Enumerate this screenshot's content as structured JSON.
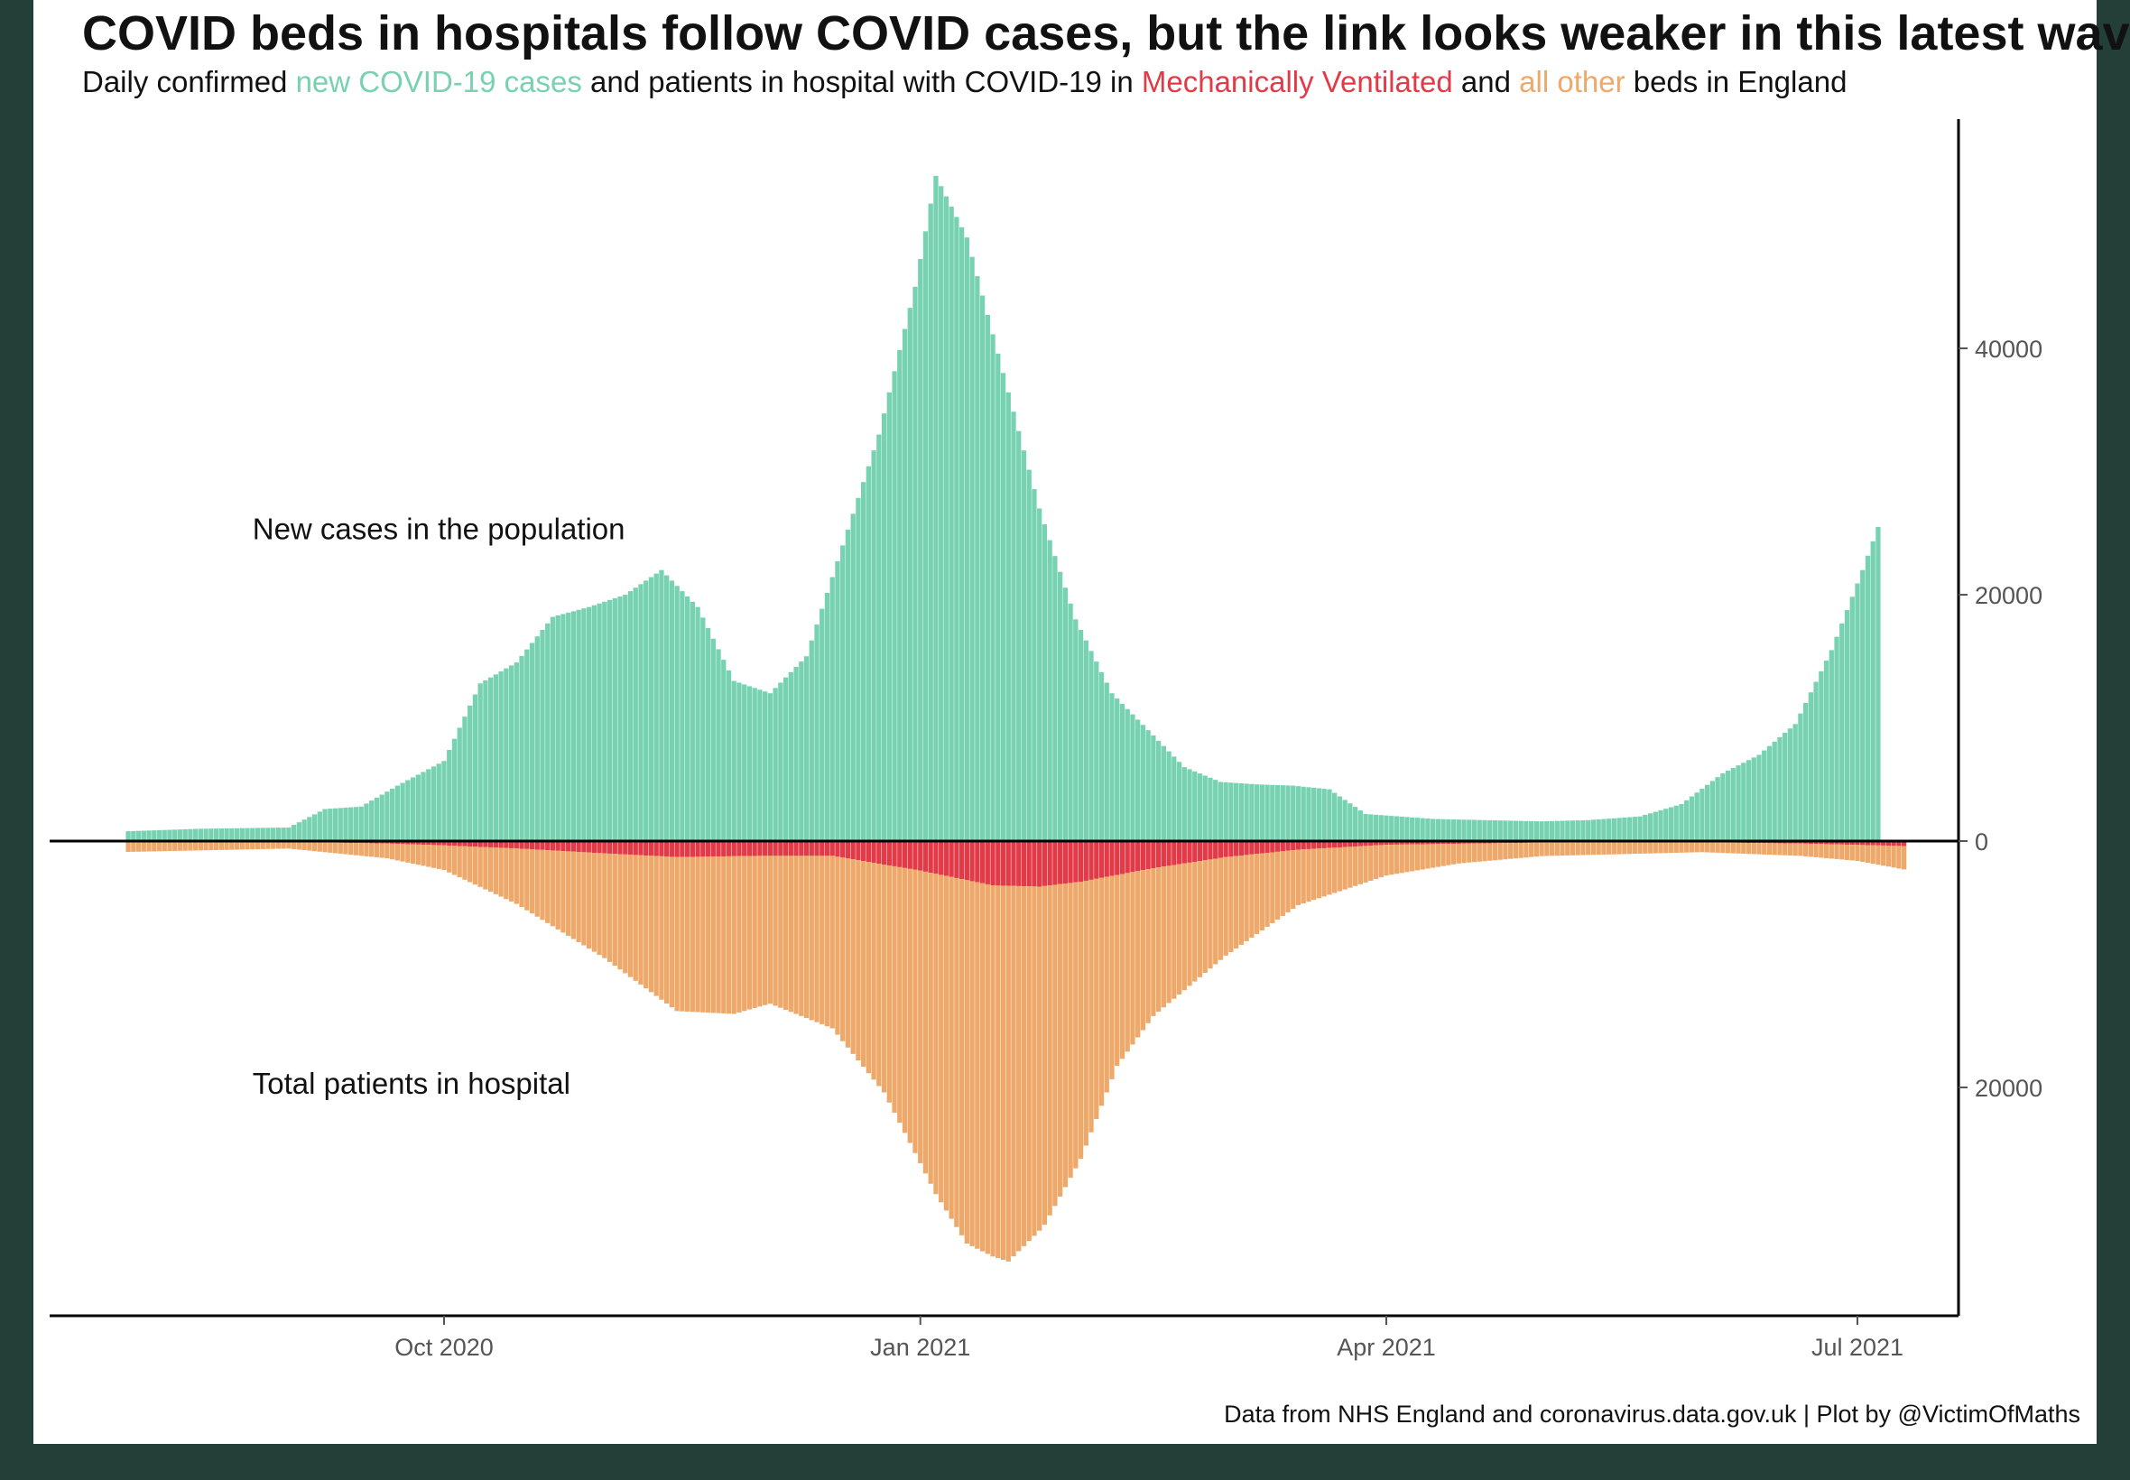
{
  "title": "COVID beds in hospitals follow COVID cases, but the link looks weaker in this latest wave",
  "subtitle": {
    "part1": "Daily confirmed ",
    "cases": "new COVID-19 cases",
    "part2": " and patients in hospital with COVID-19 in ",
    "ventilated": "Mechanically Ventilated",
    "part3": " and ",
    "other": "all other",
    "part4": " beds in England"
  },
  "caption": "Data from NHS England and coronavirus.data.gov.uk | Plot by @VictimOfMaths",
  "colors": {
    "cases": "#76d2b0",
    "ventilated": "#e33a48",
    "other_beds": "#eea86a",
    "background": "#243f37"
  },
  "chart_data": {
    "type": "bar",
    "description_orientation": "cases above zero line, hospital beds mirrored below",
    "x_start": "2020-08-01",
    "x_end": "2021-07-10",
    "x_ticks": [
      {
        "date": "2020-10-01",
        "label": "Oct 2020"
      },
      {
        "date": "2021-01-01",
        "label": "Jan 2021"
      },
      {
        "date": "2021-04-01",
        "label": "Apr 2021"
      },
      {
        "date": "2021-07-01",
        "label": "Jul 2021"
      }
    ],
    "y_ticks": [
      {
        "value": 40000,
        "label": "40000"
      },
      {
        "value": 20000,
        "label": "20000"
      },
      {
        "value": 0,
        "label": "0"
      },
      {
        "value": -20000,
        "label": "20000"
      }
    ],
    "ylim": [
      -38000,
      59000
    ],
    "annotations": [
      {
        "text": "New cases in the population",
        "date": "2020-08-25",
        "value": 24500
      },
      {
        "text": "Total patients in hospital",
        "date": "2020-08-25",
        "value": -20500
      }
    ],
    "series": [
      {
        "name": "new COVID-19 cases",
        "color": "#76d2b0",
        "points": [
          [
            "2020-08-01",
            800
          ],
          [
            "2020-08-15",
            1000
          ],
          [
            "2020-09-01",
            1100
          ],
          [
            "2020-09-08",
            2600
          ],
          [
            "2020-09-15",
            2800
          ],
          [
            "2020-09-22",
            4500
          ],
          [
            "2020-10-01",
            6500
          ],
          [
            "2020-10-08",
            12800
          ],
          [
            "2020-10-15",
            14500
          ],
          [
            "2020-10-22",
            18200
          ],
          [
            "2020-10-29",
            19000
          ],
          [
            "2020-11-05",
            20000
          ],
          [
            "2020-11-12",
            22000
          ],
          [
            "2020-11-19",
            19000
          ],
          [
            "2020-11-26",
            13000
          ],
          [
            "2020-12-03",
            12000
          ],
          [
            "2020-12-10",
            15000
          ],
          [
            "2020-12-17",
            24000
          ],
          [
            "2020-12-24",
            33000
          ],
          [
            "2020-12-31",
            45000
          ],
          [
            "2021-01-04",
            54000
          ],
          [
            "2021-01-10",
            49000
          ],
          [
            "2021-01-17",
            38000
          ],
          [
            "2021-01-24",
            27000
          ],
          [
            "2021-01-31",
            18000
          ],
          [
            "2021-02-07",
            12000
          ],
          [
            "2021-02-14",
            9000
          ],
          [
            "2021-02-21",
            6000
          ],
          [
            "2021-02-28",
            4800
          ],
          [
            "2021-03-07",
            4600
          ],
          [
            "2021-03-14",
            4500
          ],
          [
            "2021-03-21",
            4200
          ],
          [
            "2021-03-28",
            2200
          ],
          [
            "2021-04-10",
            1800
          ],
          [
            "2021-04-20",
            1700
          ],
          [
            "2021-05-01",
            1600
          ],
          [
            "2021-05-10",
            1700
          ],
          [
            "2021-05-20",
            2000
          ],
          [
            "2021-05-28",
            3000
          ],
          [
            "2021-06-05",
            5500
          ],
          [
            "2021-06-12",
            7000
          ],
          [
            "2021-06-19",
            9500
          ],
          [
            "2021-06-26",
            15500
          ],
          [
            "2021-07-02",
            22000
          ],
          [
            "2021-07-05",
            25500
          ]
        ]
      },
      {
        "name": "Mechanically Ventilated",
        "color": "#e33a48",
        "points": [
          [
            "2020-08-01",
            80
          ],
          [
            "2020-09-01",
            60
          ],
          [
            "2020-09-20",
            200
          ],
          [
            "2020-10-01",
            350
          ],
          [
            "2020-10-15",
            600
          ],
          [
            "2020-11-01",
            1000
          ],
          [
            "2020-11-15",
            1300
          ],
          [
            "2020-12-01",
            1200
          ],
          [
            "2020-12-15",
            1200
          ],
          [
            "2021-01-01",
            2400
          ],
          [
            "2021-01-15",
            3600
          ],
          [
            "2021-01-24",
            3700
          ],
          [
            "2021-02-01",
            3300
          ],
          [
            "2021-02-15",
            2200
          ],
          [
            "2021-03-01",
            1300
          ],
          [
            "2021-03-15",
            700
          ],
          [
            "2021-04-01",
            300
          ],
          [
            "2021-05-01",
            120
          ],
          [
            "2021-06-01",
            100
          ],
          [
            "2021-06-20",
            200
          ],
          [
            "2021-07-10",
            400
          ]
        ]
      },
      {
        "name": "all other",
        "color": "#eea86a",
        "points": [
          [
            "2020-08-01",
            800
          ],
          [
            "2020-09-01",
            550
          ],
          [
            "2020-09-20",
            1200
          ],
          [
            "2020-10-01",
            2000
          ],
          [
            "2020-10-15",
            4500
          ],
          [
            "2020-11-01",
            8500
          ],
          [
            "2020-11-15",
            12500
          ],
          [
            "2020-11-26",
            12800
          ],
          [
            "2020-12-03",
            12000
          ],
          [
            "2020-12-15",
            14000
          ],
          [
            "2020-12-25",
            18500
          ],
          [
            "2021-01-04",
            26000
          ],
          [
            "2021-01-10",
            29500
          ],
          [
            "2021-01-18",
            30500
          ],
          [
            "2021-01-25",
            27500
          ],
          [
            "2021-02-01",
            22500
          ],
          [
            "2021-02-08",
            15500
          ],
          [
            "2021-02-15",
            12000
          ],
          [
            "2021-03-01",
            8000
          ],
          [
            "2021-03-15",
            4500
          ],
          [
            "2021-04-01",
            2500
          ],
          [
            "2021-04-15",
            1600
          ],
          [
            "2021-05-01",
            1100
          ],
          [
            "2021-06-01",
            800
          ],
          [
            "2021-06-20",
            1000
          ],
          [
            "2021-07-01",
            1300
          ],
          [
            "2021-07-10",
            1900
          ]
        ]
      }
    ]
  }
}
